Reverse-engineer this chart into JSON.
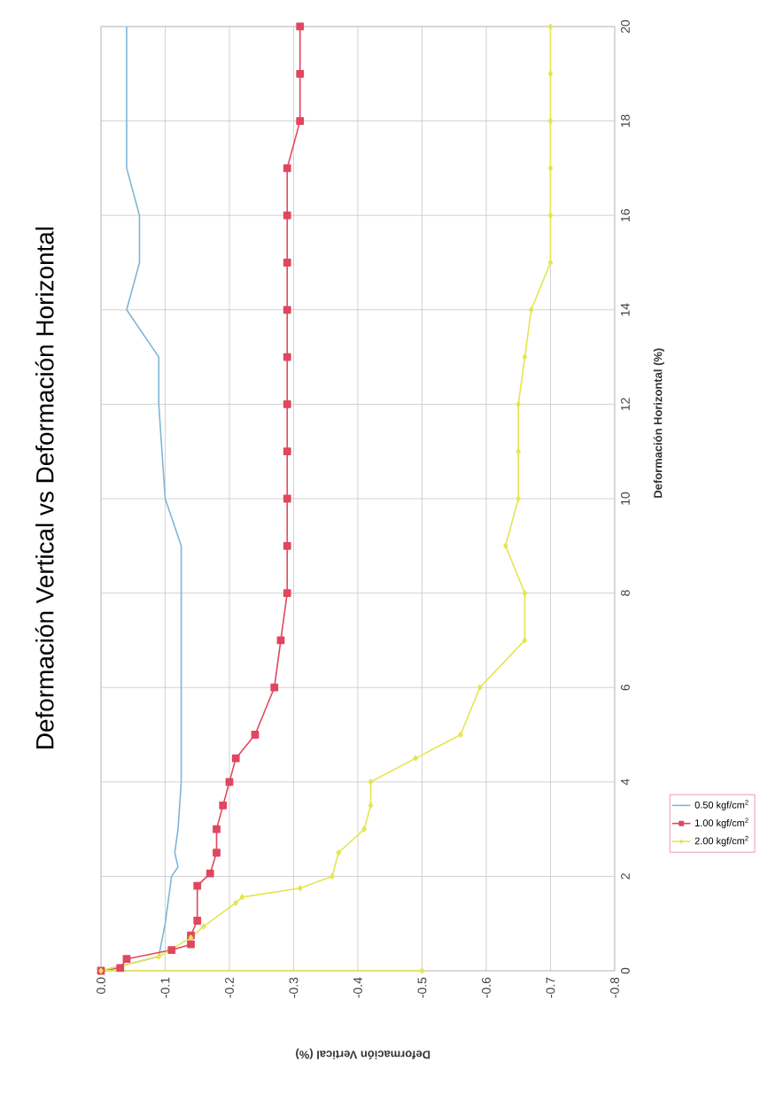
{
  "chart_data": {
    "type": "line",
    "title": "Deformación Vertical vs Deformación Horizontal",
    "xlabel": "Deformación Vertical (%)",
    "ylabel": "Deformación Horizontal (%)",
    "xlim": [
      0,
      -0.8
    ],
    "xticks": [
      {
        "value": 0,
        "label": "0.0"
      },
      -0.1,
      -0.2,
      -0.3,
      -0.4,
      -0.5,
      -0.6,
      -0.7,
      -0.8
    ],
    "ylim": [
      0,
      20
    ],
    "yticks": [
      0,
      2,
      4,
      6,
      8,
      10,
      12,
      14,
      16,
      18,
      20
    ],
    "grid": true,
    "legend": "bottom right",
    "line_style": "solid",
    "series": [
      {
        "name": "0.50 kgf/cm$^{2}$",
        "color": "#7fb6d6",
        "marker": "none",
        "values": [
          0,
          0.3,
          1,
          2,
          2.2,
          2.5,
          3,
          4,
          9,
          10,
          12,
          13,
          14,
          15,
          16,
          17,
          20
        ],
        "x": [
          0,
          -0.09,
          -0.1,
          -0.11,
          -0.12,
          -0.115,
          -0.12,
          -0.125,
          -0.125,
          -0.1,
          -0.09,
          -0.09,
          -0.04,
          -0.06,
          -0.06,
          -0.04,
          -0.04
        ]
      },
      {
        "name": "1.00 kgf/cm$^{2}$",
        "color": "#e0475f",
        "marker": "square",
        "values": [
          0,
          0.06,
          0.25,
          0.44,
          0.56,
          0.75,
          1.06,
          1.8,
          2.06,
          2.5,
          3,
          3.5,
          4,
          4.5,
          5,
          6,
          7,
          8,
          9,
          10,
          11,
          12,
          13,
          14,
          15,
          16,
          17,
          18,
          19,
          20
        ],
        "x": [
          0,
          -0.03,
          -0.04,
          -0.11,
          -0.14,
          -0.14,
          -0.15,
          -0.15,
          -0.17,
          -0.18,
          -0.18,
          -0.19,
          -0.2,
          -0.21,
          -0.24,
          -0.27,
          -0.28,
          -0.29,
          -0.29,
          -0.29,
          -0.29,
          -0.29,
          -0.29,
          -0.29,
          -0.29,
          -0.29,
          -0.29,
          -0.31,
          -0.31,
          -0.31
        ]
      },
      {
        "name": "2.00 kgf/cm$^{2}$",
        "color": "#e3e650",
        "marker": "diamond",
        "values": [
          0,
          0,
          0.3,
          0.7,
          0.94,
          1.44,
          1.56,
          1.75,
          2,
          2.5,
          3,
          3.5,
          4,
          4.5,
          5,
          6,
          7,
          8,
          9,
          10,
          11,
          12,
          13,
          14,
          15,
          16,
          17,
          18,
          19,
          20
        ],
        "x": [
          -0.5,
          0,
          -0.09,
          -0.14,
          -0.16,
          -0.21,
          -0.22,
          -0.31,
          -0.36,
          -0.37,
          -0.41,
          -0.42,
          -0.42,
          -0.49,
          -0.56,
          -0.59,
          -0.66,
          -0.66,
          -0.63,
          -0.65,
          -0.65,
          -0.65,
          -0.66,
          -0.67,
          -0.7,
          -0.7,
          -0.7,
          -0.7,
          -0.7,
          -0.7
        ]
      }
    ]
  }
}
